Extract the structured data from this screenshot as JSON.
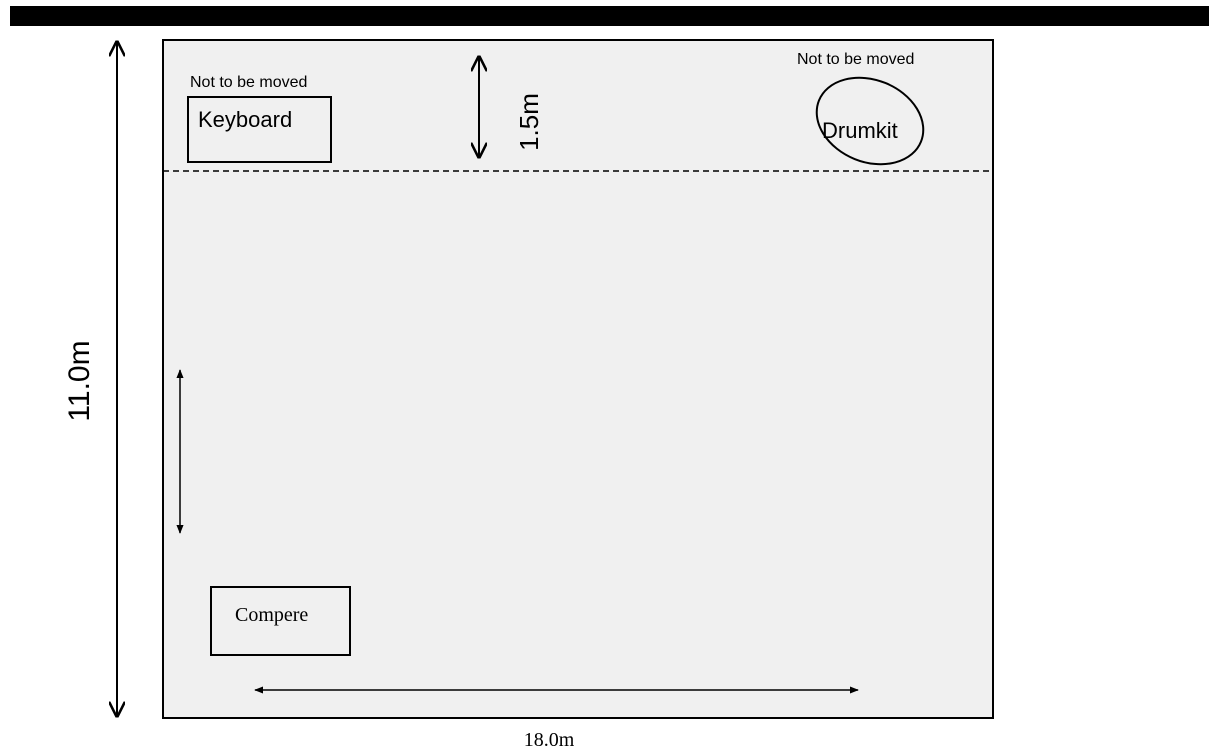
{
  "stage": {
    "width_label": "18.0m",
    "depth_label": "11.0m",
    "front_zone_label": "1.5m",
    "colors": {
      "top_bar": "#000000",
      "stage_fill": "#f0f0f0",
      "stroke": "#000000"
    }
  },
  "items": {
    "keyboard": {
      "label": "Keyboard",
      "note": "Not to be moved"
    },
    "drumkit": {
      "label": "Drumkit",
      "note": "Not to be moved"
    },
    "compere": {
      "label": "Compere"
    }
  }
}
